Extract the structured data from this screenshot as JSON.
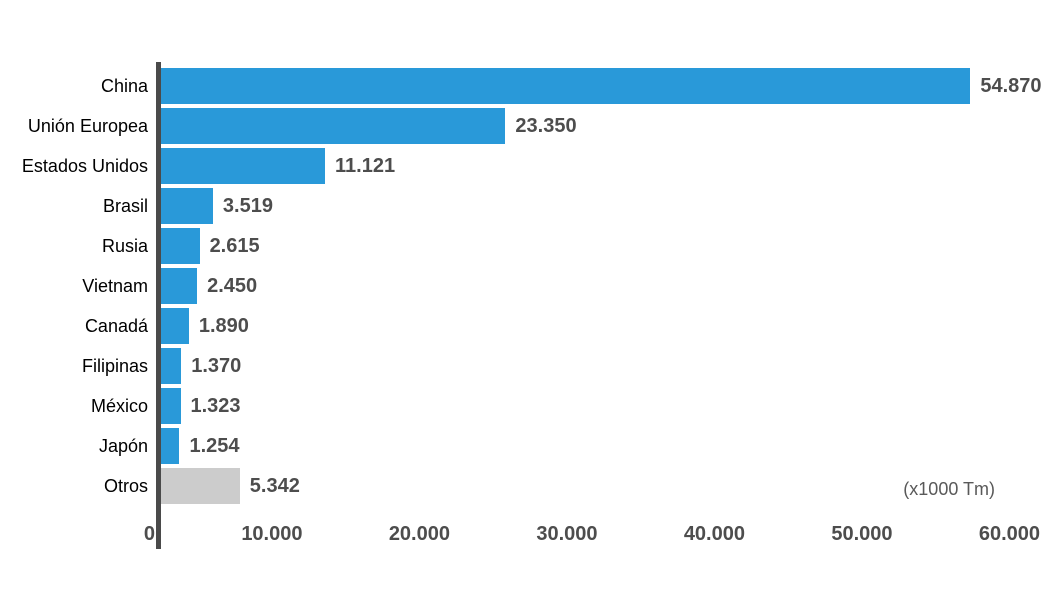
{
  "chart_data": {
    "type": "bar",
    "orientation": "horizontal",
    "title": "",
    "unit_label": "(x1000 Tm)",
    "categories": [
      "China",
      "Unión Europea",
      "Estados Unidos",
      "Brasil",
      "Rusia",
      "Vietnam",
      "Canadá",
      "Filipinas",
      "México",
      "Japón",
      "Otros"
    ],
    "values": [
      54870,
      23350,
      11121,
      3519,
      2615,
      2450,
      1890,
      1370,
      1323,
      1254,
      5342
    ],
    "value_labels": [
      "54.870",
      "23.350",
      "11.121",
      "3.519",
      "2.615",
      "2.450",
      "1.890",
      "1.370",
      "1.323",
      "1.254",
      "5.342"
    ],
    "highlight_category": "Otros",
    "xlim": [
      0,
      60000
    ],
    "x_tick_values": [
      0,
      10000,
      20000,
      30000,
      40000,
      50000,
      60000
    ],
    "x_tick_labels": [
      "0",
      "10.000",
      "20.000",
      "30.000",
      "40.000",
      "50.000",
      "60.000"
    ],
    "grid": false,
    "legend": false
  },
  "colors": {
    "bar_blue": "#2999D9",
    "bar_gray": "#CCCCCC",
    "axis_line": "#4A4A4A",
    "value_text": "#4D4D4D",
    "tick_text": "#4D4D4D",
    "category_text": "#000000",
    "unit_text": "#595959",
    "background": "#FFFFFF"
  }
}
